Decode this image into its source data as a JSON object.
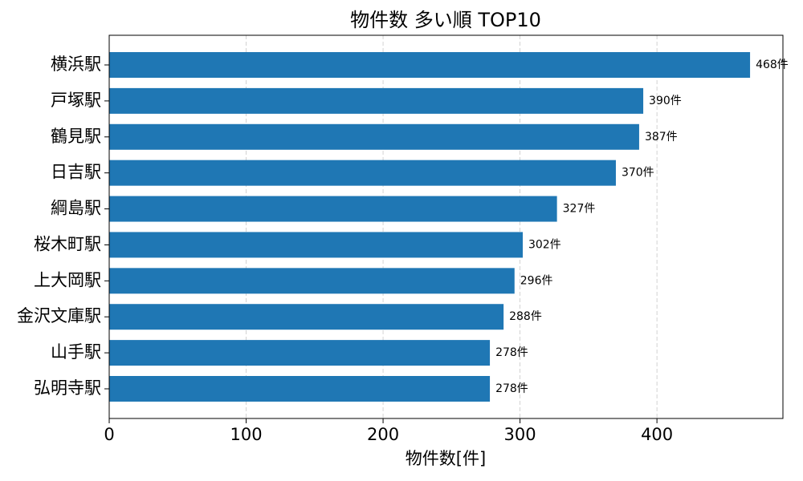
{
  "chart_data": {
    "type": "barh",
    "title": "物件数 多い順 TOP10",
    "xlabel": "物件数[件]",
    "categories": [
      "横浜駅",
      "戸塚駅",
      "鶴見駅",
      "日吉駅",
      "綱島駅",
      "桜木町駅",
      "上大岡駅",
      "金沢文庫駅",
      "山手駅",
      "弘明寺駅"
    ],
    "values": [
      468,
      390,
      387,
      370,
      327,
      302,
      296,
      288,
      278,
      278
    ],
    "value_labels": [
      "468件",
      "390件",
      "387件",
      "370件",
      "327件",
      "302件",
      "296件",
      "288件",
      "278件",
      "278件"
    ],
    "color": "#1f77b4",
    "xlim": [
      0,
      492
    ],
    "xticks": [
      0,
      100,
      200,
      300,
      400
    ],
    "grid": true
  }
}
